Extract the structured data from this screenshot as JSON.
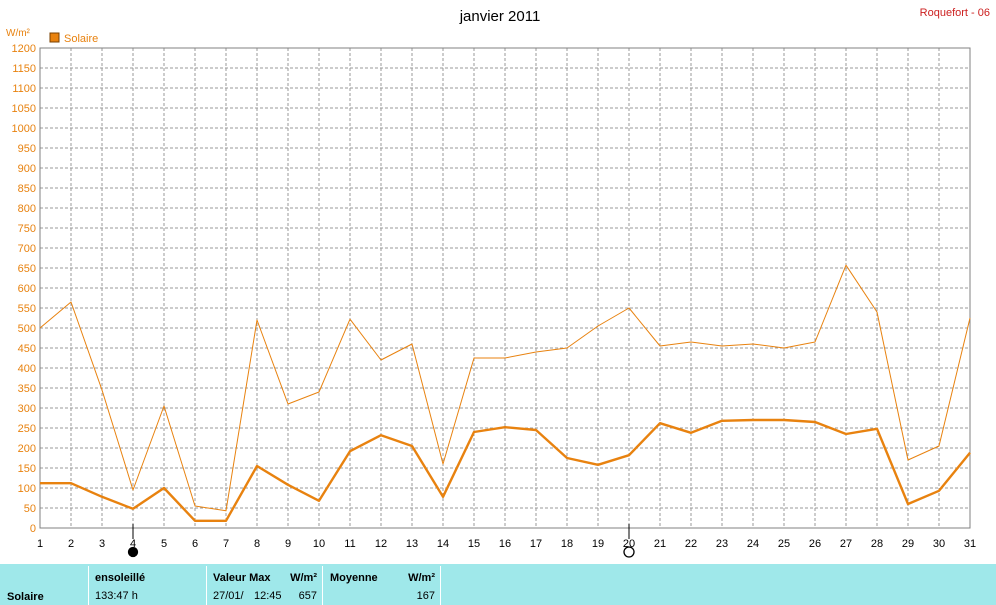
{
  "header": {
    "title": "janvier 2011",
    "station": "Roquefort - 06"
  },
  "colors": {
    "series": "#e8820f",
    "station": "#cc1f1f",
    "footer_bg": "#9fe8ea",
    "grid": "#999999"
  },
  "moon_phases": [
    {
      "day": 4,
      "phase": "new-moon"
    },
    {
      "day": 20,
      "phase": "full-moon"
    }
  ],
  "footer": {
    "series_name": "Solaire",
    "sunshine_label": "ensoleillé",
    "sunshine_value": "133:47 h",
    "max_label": "Valeur Max",
    "max_unit": "W/m²",
    "max_date": "27/01/",
    "max_time": "12:45",
    "max_value": "657",
    "avg_label": "Moyenne",
    "avg_unit": "W/m²",
    "avg_value": "167"
  },
  "chart_data": {
    "type": "line",
    "title": "janvier 2011",
    "ylabel": "W/m²",
    "xlabel": "",
    "ylim": [
      0,
      1200
    ],
    "y_ticks": [
      0,
      50,
      100,
      150,
      200,
      250,
      300,
      350,
      400,
      450,
      500,
      550,
      600,
      650,
      700,
      750,
      800,
      850,
      900,
      950,
      1000,
      1050,
      1100,
      1150,
      1200
    ],
    "x": [
      1,
      2,
      3,
      4,
      5,
      6,
      7,
      8,
      9,
      10,
      11,
      12,
      13,
      14,
      15,
      16,
      17,
      18,
      19,
      20,
      21,
      22,
      23,
      24,
      25,
      26,
      27,
      28,
      29,
      30,
      31
    ],
    "grid": true,
    "legend": [
      {
        "name": "Solaire",
        "position": "top-left"
      }
    ],
    "series": [
      {
        "name": "Solaire max",
        "values": [
          500,
          565,
          345,
          95,
          305,
          55,
          43,
          520,
          310,
          340,
          522,
          420,
          460,
          160,
          425,
          425,
          440,
          450,
          505,
          550,
          455,
          465,
          455,
          460,
          450,
          465,
          657,
          540,
          170,
          205,
          525
        ]
      },
      {
        "name": "Solaire",
        "values": [
          112,
          112,
          78,
          48,
          100,
          18,
          18,
          155,
          108,
          68,
          192,
          232,
          205,
          78,
          240,
          252,
          245,
          175,
          158,
          182,
          262,
          238,
          268,
          270,
          270,
          265,
          235,
          248,
          60,
          93,
          188
        ]
      }
    ]
  }
}
